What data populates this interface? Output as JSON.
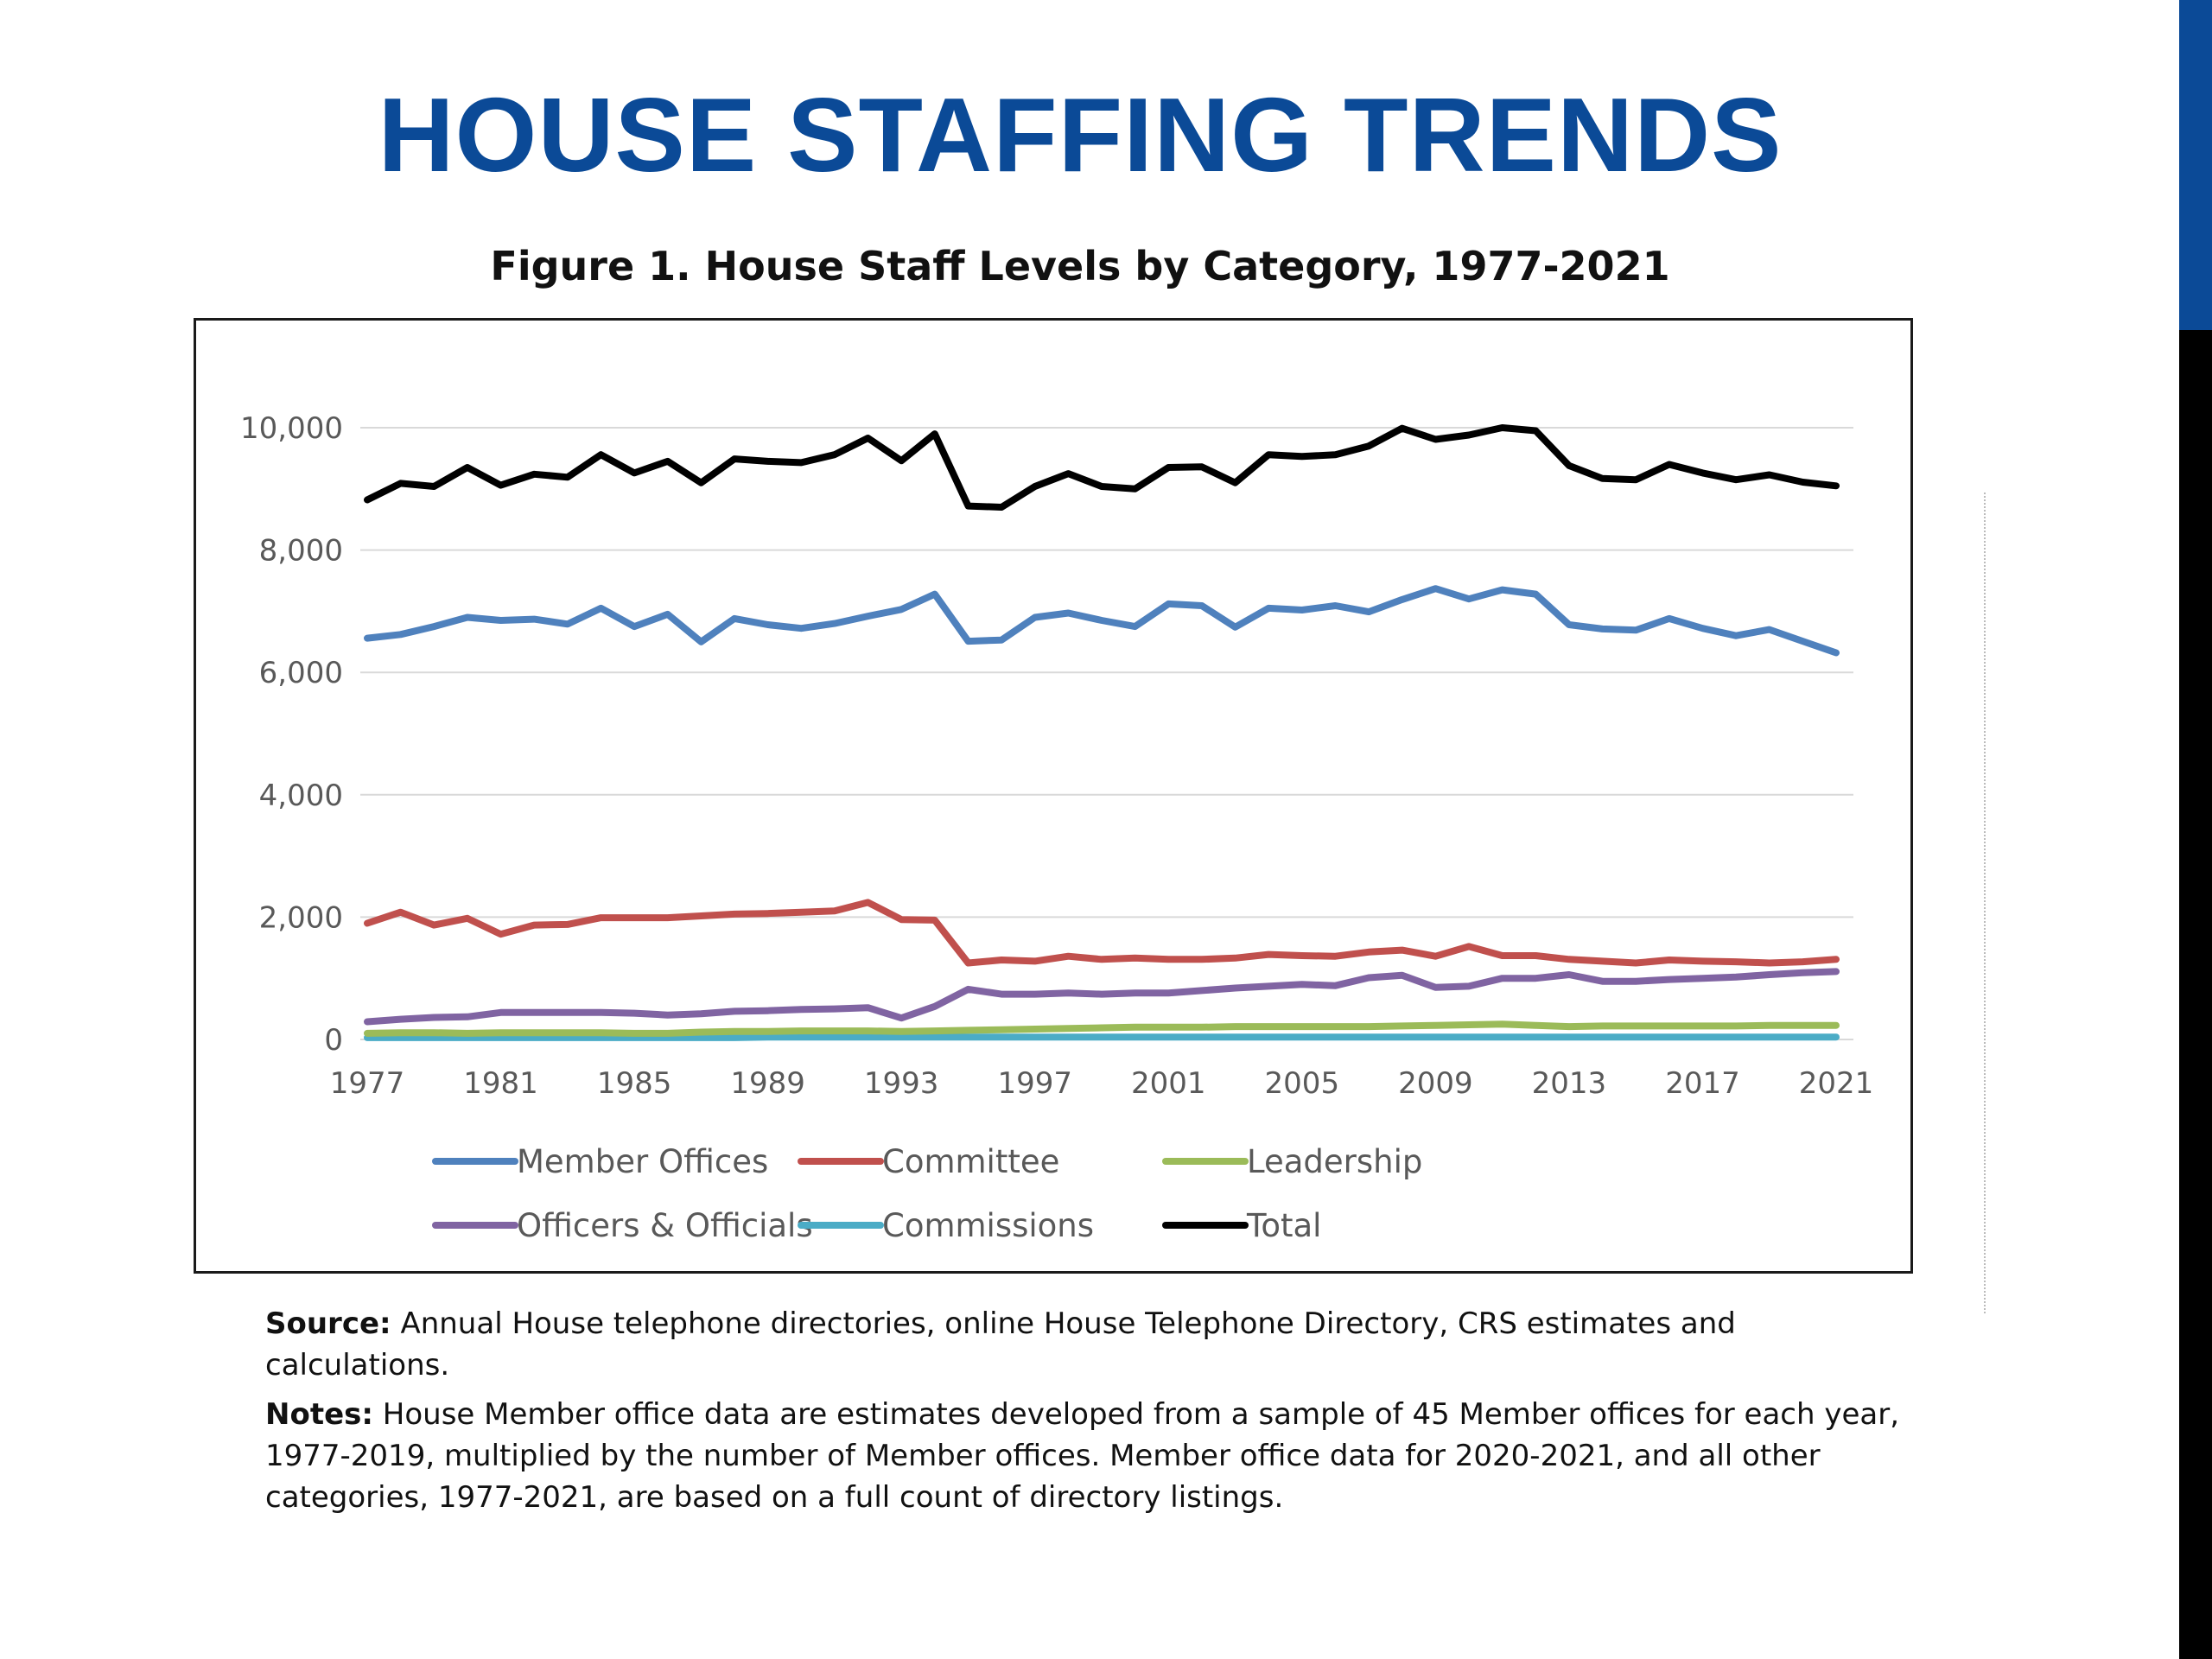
{
  "slide": {
    "title": "HOUSE STAFFING TRENDS",
    "accent_color": "#0b4a97"
  },
  "figure": {
    "title": "Figure 1. House Staff Levels by Category, 1977-2021",
    "source_label": "Source:",
    "source_text": " Annual House telephone directories,  online House Telephone Directory,  CRS estimates  and calculations.",
    "notes_label": "Notes:",
    "notes_text": " House Member office data are estimates  developed from a sample  of 45 Member  offices for each year, 1977-2019, multiplied by the number of Member  offices. Member  office data for 2020-2021, and all other categories,  1977-2021, are based on a full count of directory  listings."
  },
  "chart_data": {
    "type": "line",
    "title": "Figure 1. House Staff Levels by Category, 1977-2021",
    "xlabel": "",
    "ylabel": "",
    "ylim": [
      0,
      10000
    ],
    "yticks": [
      0,
      2000,
      4000,
      6000,
      8000,
      10000
    ],
    "ytick_labels": [
      "0",
      "2,000",
      "4,000",
      "6,000",
      "8,000",
      "10,000"
    ],
    "xtick_labels": [
      "1977",
      "1981",
      "1985",
      "1989",
      "1993",
      "1997",
      "2001",
      "2005",
      "2009",
      "2013",
      "2017",
      "2021"
    ],
    "grid": "horizontal",
    "legend_position": "bottom",
    "x": [
      1977,
      1978,
      1979,
      1980,
      1981,
      1982,
      1983,
      1984,
      1985,
      1986,
      1987,
      1988,
      1989,
      1990,
      1991,
      1992,
      1993,
      1994,
      1995,
      1996,
      1997,
      1998,
      1999,
      2000,
      2001,
      2002,
      2003,
      2004,
      2005,
      2006,
      2007,
      2008,
      2009,
      2010,
      2011,
      2012,
      2013,
      2014,
      2015,
      2016,
      2017,
      2018,
      2019,
      2020,
      2021
    ],
    "series": [
      {
        "name": "Member Offices",
        "color": "#4f81bd",
        "values": [
          6560,
          6620,
          6750,
          6900,
          6850,
          6870,
          6790,
          7050,
          6750,
          6950,
          6500,
          6880,
          6780,
          6720,
          6800,
          6920,
          7030,
          7280,
          6510,
          6530,
          6900,
          6970,
          6850,
          6750,
          7120,
          7090,
          6740,
          7050,
          7020,
          7090,
          6990,
          7190,
          7370,
          7200,
          7350,
          7280,
          6780,
          6710,
          6690,
          6880,
          6720,
          6600,
          6700,
          6510,
          6320
        ]
      },
      {
        "name": "Committee",
        "color": "#c0504d",
        "values": [
          1900,
          2080,
          1870,
          1980,
          1720,
          1870,
          1880,
          1990,
          1990,
          1990,
          2020,
          2050,
          2060,
          2080,
          2100,
          2240,
          1960,
          1950,
          1250,
          1300,
          1280,
          1360,
          1310,
          1330,
          1310,
          1310,
          1330,
          1390,
          1370,
          1360,
          1430,
          1460,
          1360,
          1520,
          1370,
          1370,
          1310,
          1280,
          1250,
          1300,
          1280,
          1270,
          1250,
          1270,
          1310
        ]
      },
      {
        "name": "Leadership",
        "color": "#9bbb59",
        "values": [
          100,
          110,
          110,
          100,
          110,
          110,
          110,
          110,
          100,
          100,
          120,
          130,
          130,
          140,
          140,
          140,
          130,
          140,
          150,
          160,
          170,
          180,
          190,
          200,
          200,
          200,
          210,
          210,
          210,
          210,
          210,
          220,
          230,
          240,
          250,
          230,
          210,
          220,
          220,
          220,
          220,
          220,
          230,
          230,
          230
        ]
      },
      {
        "name": "Officers & Officials",
        "color": "#8064a2",
        "values": [
          290,
          330,
          360,
          370,
          440,
          440,
          440,
          440,
          430,
          400,
          420,
          460,
          470,
          490,
          500,
          520,
          350,
          540,
          820,
          740,
          740,
          760,
          740,
          760,
          760,
          800,
          840,
          870,
          900,
          880,
          1010,
          1050,
          850,
          870,
          1000,
          1000,
          1060,
          950,
          950,
          980,
          1000,
          1020,
          1060,
          1090,
          1110
        ]
      },
      {
        "name": "Commissions",
        "color": "#4bacc6",
        "values": [
          30,
          30,
          30,
          30,
          30,
          30,
          30,
          30,
          30,
          30,
          30,
          30,
          40,
          40,
          40,
          40,
          40,
          40,
          40,
          40,
          40,
          40,
          40,
          40,
          40,
          40,
          40,
          40,
          40,
          40,
          40,
          40,
          40,
          40,
          40,
          40,
          40,
          40,
          40,
          40,
          40,
          40,
          40,
          40,
          40
        ]
      },
      {
        "name": "Total",
        "color": "#000000",
        "values": [
          8820,
          9090,
          9040,
          9350,
          9060,
          9240,
          9190,
          9560,
          9260,
          9450,
          9100,
          9490,
          9450,
          9430,
          9560,
          9830,
          9460,
          9900,
          8720,
          8700,
          9040,
          9250,
          9040,
          9000,
          9350,
          9360,
          9100,
          9560,
          9530,
          9560,
          9700,
          9990,
          9810,
          9880,
          10000,
          9950,
          9380,
          9170,
          9150,
          9400,
          9260,
          9150,
          9230,
          9110,
          9050
        ]
      }
    ]
  }
}
